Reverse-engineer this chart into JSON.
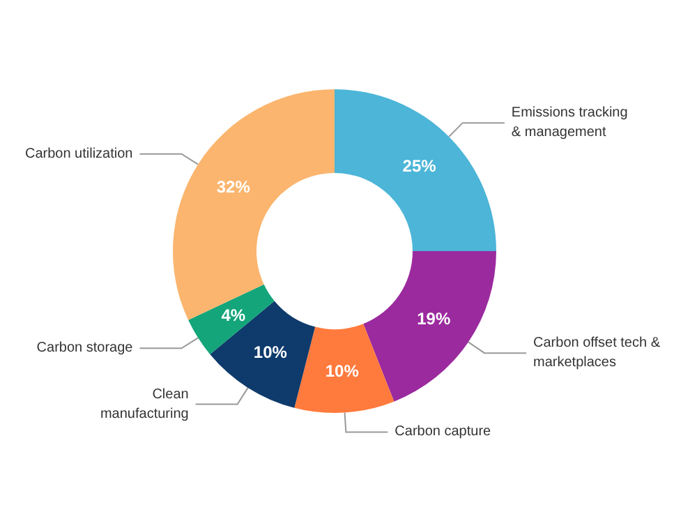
{
  "chart_data": {
    "type": "donut",
    "categories": [
      "Emissions tracking\n& management",
      "Carbon offset tech &\nmarketplaces",
      "Carbon capture",
      "Clean\nmanufacturing",
      "Carbon storage",
      "Carbon utilization"
    ],
    "values": [
      25,
      19,
      10,
      10,
      4,
      32
    ],
    "value_labels": [
      "25%",
      "19%",
      "10%",
      "10%",
      "4%",
      "32%"
    ],
    "colors": [
      "#4cb5d8",
      "#9b2a9e",
      "#ff7a3d",
      "#0e3a6c",
      "#14a57a",
      "#fbb56e"
    ]
  }
}
